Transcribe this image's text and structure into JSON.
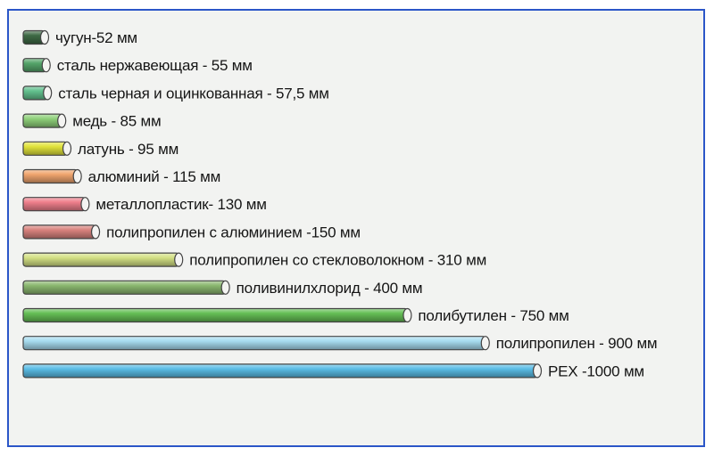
{
  "colors": {
    "frame_border": "#2b56c8",
    "background": "#f2f3f1"
  },
  "chart_data": {
    "type": "bar",
    "orientation": "horizontal",
    "grid": false,
    "legend": "none",
    "bar_style": "pipe",
    "unit": "мм",
    "items": [
      {
        "label": "чугун-52 мм",
        "value": 52,
        "color": "#3e6a45"
      },
      {
        "label": "сталь нержавеющая - 55 мм",
        "value": 55,
        "color": "#55a56a"
      },
      {
        "label": "сталь черная и оцинкованная - 57,5 мм",
        "value": 57.5,
        "color": "#62c08e"
      },
      {
        "label": "медь - 85 мм",
        "value": 85,
        "color": "#8fd07a"
      },
      {
        "label": "латунь - 95 мм",
        "value": 95,
        "color": "#e1e33a"
      },
      {
        "label": "алюминий - 115 мм",
        "value": 115,
        "color": "#f0a56e"
      },
      {
        "label": "металлопластик- 130 мм",
        "value": 130,
        "color": "#ef7f8c"
      },
      {
        "label": "полипропилен с алюминием  -150 мм",
        "value": 150,
        "color": "#d8837e"
      },
      {
        "label": "полипропилен со стекловолокном - 310 мм",
        "value": 310,
        "color": "#d3e084"
      },
      {
        "label": "поливинилхлорид - 400 мм",
        "value": 400,
        "color": "#8ab76f"
      },
      {
        "label": "полибутилен - 750 мм",
        "value": 750,
        "color": "#65bf55"
      },
      {
        "label": "полипропилен - 900 мм",
        "value": 900,
        "color": "#a7dcf0"
      },
      {
        "label": "PEX -1000 мм",
        "value": 1000,
        "color": "#5bbde6"
      }
    ]
  }
}
